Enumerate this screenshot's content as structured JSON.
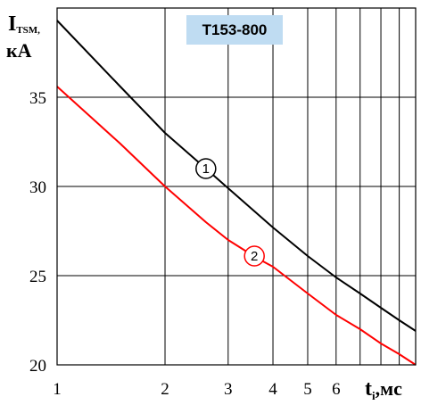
{
  "chart_data": {
    "type": "line",
    "title": "Т153-800",
    "title_box_color": "#bfdcf2",
    "ylabel": {
      "main": "I",
      "sub": "TSM,",
      "unit": "кА"
    },
    "xlabel": {
      "main": "t",
      "sub": "i",
      "unit": ",мс"
    },
    "x_scale": "log",
    "xlim": [
      1,
      10
    ],
    "ylim": [
      20,
      40
    ],
    "x_ticks": [
      1,
      2,
      3,
      4,
      5,
      6
    ],
    "x_tick_labels": [
      "1",
      "2",
      "3",
      "4",
      "5",
      "6"
    ],
    "x_gridlines": [
      1,
      2,
      3,
      4,
      5,
      6,
      7,
      8,
      9,
      10
    ],
    "y_ticks": [
      20,
      25,
      30,
      35
    ],
    "y_tick_labels": [
      "20",
      "25",
      "30",
      "35"
    ],
    "grid": true,
    "series": [
      {
        "name": "1",
        "color": "#000000",
        "x": [
          1,
          1.5,
          2,
          2.6,
          3,
          4,
          5,
          6,
          7,
          8,
          9,
          10
        ],
        "y": [
          39.3,
          35.6,
          33.0,
          31.0,
          29.9,
          27.7,
          26.1,
          24.9,
          24.0,
          23.2,
          22.5,
          21.9
        ]
      },
      {
        "name": "2",
        "color": "#ff0000",
        "x": [
          1,
          1.5,
          2,
          2.6,
          3,
          3.6,
          4,
          5,
          6,
          7,
          8,
          9,
          10
        ],
        "y": [
          35.6,
          32.4,
          30.0,
          28.0,
          27.0,
          26.0,
          25.5,
          24.0,
          22.8,
          22.0,
          21.2,
          20.6,
          20.0
        ]
      }
    ],
    "markers": [
      {
        "label": "1",
        "x": 2.6,
        "y": 31.0,
        "color": "#000000"
      },
      {
        "label": "2",
        "x": 3.55,
        "y": 26.1,
        "color": "#ff0000"
      }
    ]
  }
}
